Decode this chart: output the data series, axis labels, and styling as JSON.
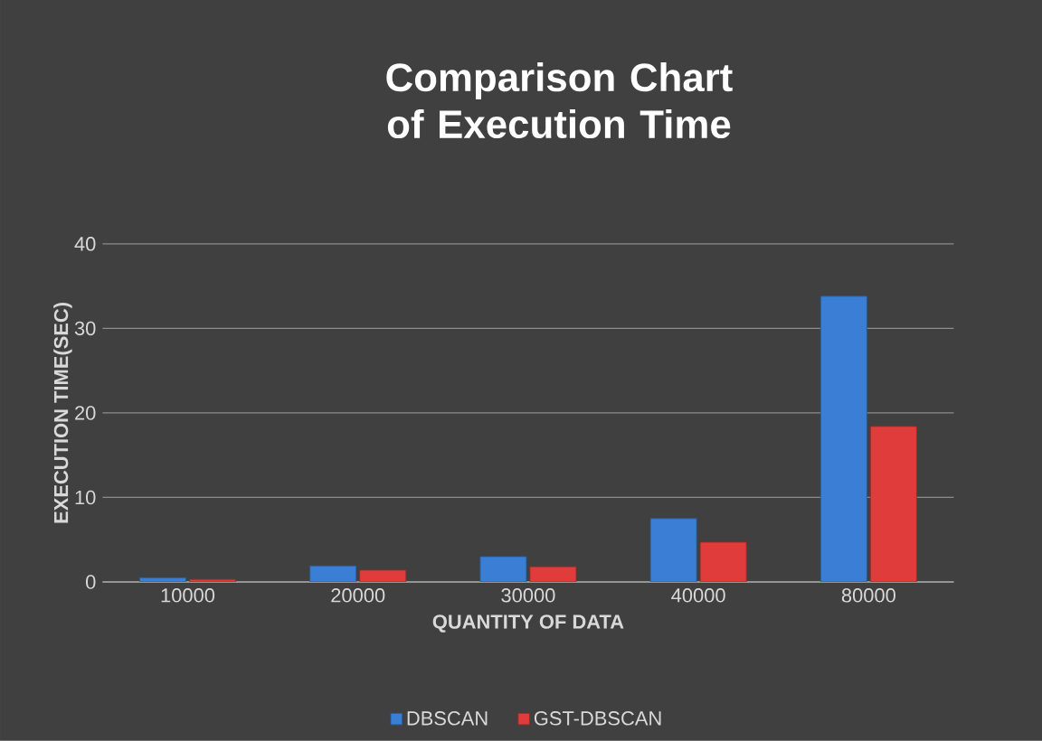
{
  "chart_data": {
    "type": "bar",
    "title": "Comparison Chart of Execution Time",
    "xlabel": "QUANTITY OF DATA",
    "ylabel": "EXECUTION TIME(SEC)",
    "categories": [
      "10000",
      "20000",
      "30000",
      "40000",
      "80000"
    ],
    "series": [
      {
        "name": "DBSCAN",
        "color": "#3a7fd5",
        "values": [
          0.5,
          1.9,
          3.0,
          7.5,
          33.8
        ]
      },
      {
        "name": "GST-DBSCAN",
        "color": "#e03c3c",
        "values": [
          0.3,
          1.4,
          1.8,
          4.7,
          18.4
        ]
      }
    ],
    "ylim": [
      0,
      40
    ],
    "yticks": [
      0,
      10,
      20,
      30,
      40
    ],
    "grid": "y",
    "legend": "bottom"
  }
}
